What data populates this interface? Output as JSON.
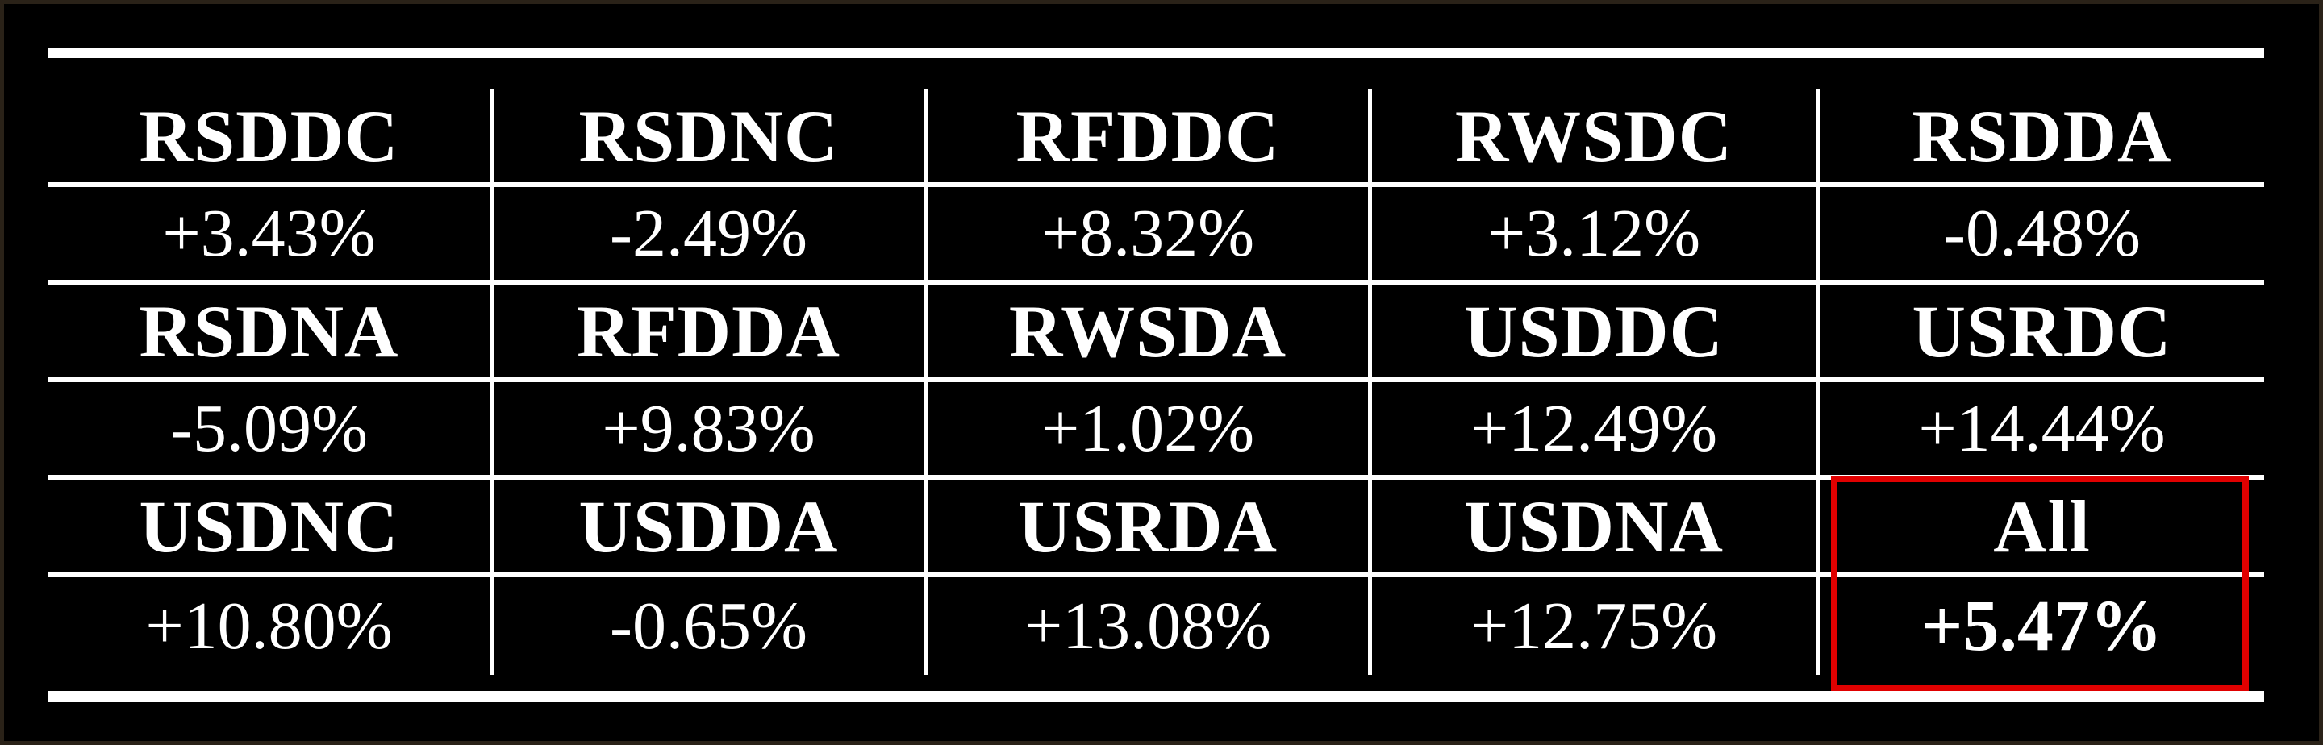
{
  "table": {
    "rows": [
      {
        "headers": [
          "RSDDC",
          "RSDNC",
          "RFDDC",
          "RWSDC",
          "RSDDA"
        ],
        "values": [
          "+3.43%",
          "-2.49%",
          "+8.32%",
          "+3.12%",
          "-0.48%"
        ]
      },
      {
        "headers": [
          "RSDNA",
          "RFDDA",
          "RWSDA",
          "USDDC",
          "USRDC"
        ],
        "values": [
          "-5.09%",
          "+9.83%",
          "+1.02%",
          "+12.49%",
          "+14.44%"
        ]
      },
      {
        "headers": [
          "USDNC",
          "USDDA",
          "USRDA",
          "USDNA",
          "All"
        ],
        "values": [
          "+10.80%",
          "-0.65%",
          "+13.08%",
          "+12.75%",
          "+5.47%"
        ]
      }
    ]
  },
  "highlight": {
    "color": "#e00000",
    "target": "All"
  },
  "colors": {
    "background": "#000000",
    "text": "#ffffff",
    "lines": "#ffffff"
  }
}
